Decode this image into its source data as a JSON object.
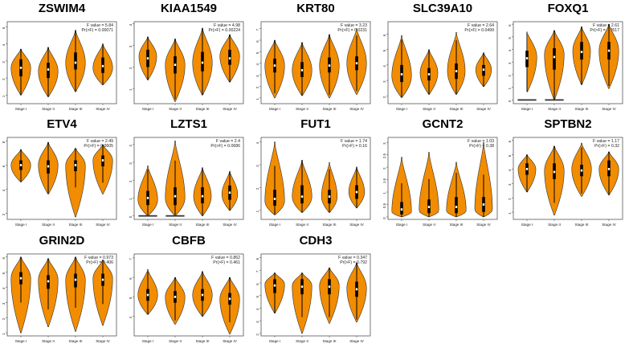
{
  "colors": {
    "violin_fill": "#F28C00",
    "violin_stroke": "#333333",
    "box": "#000000",
    "median": "#ffffff",
    "frame": "#555555"
  },
  "chart_data": [
    {
      "type": "violin",
      "gene": "ZSWIM4",
      "f_value": "F value = 5.84",
      "pr_value": "Pr(>F) = 0.00071",
      "categories": [
        "Stage I",
        "Stage II",
        "Stage III",
        "Stage IV"
      ],
      "ylim": [
        0.5,
        5.3
      ],
      "yticks": [
        1,
        2,
        3,
        4,
        5
      ],
      "zero_bars": false,
      "series": [
        {
          "median": 2.6,
          "q1": 2.1,
          "q3": 3.1,
          "min": 1.0,
          "max": 3.7,
          "mode": 2.6,
          "width": 1.0
        },
        {
          "median": 2.5,
          "q1": 2.0,
          "q3": 2.9,
          "min": 0.9,
          "max": 3.8,
          "mode": 2.4,
          "width": 1.0
        },
        {
          "median": 2.9,
          "q1": 2.5,
          "q3": 3.5,
          "min": 1.2,
          "max": 4.8,
          "mode": 2.9,
          "width": 1.0
        },
        {
          "median": 2.7,
          "q1": 2.3,
          "q3": 3.2,
          "min": 1.6,
          "max": 4.0,
          "mode": 2.6,
          "width": 1.0
        }
      ]
    },
    {
      "type": "violin",
      "gene": "KIAA1549",
      "f_value": "F value = 4.98",
      "pr_value": "Pr(>F) = 0.00224",
      "categories": [
        "Stage I",
        "Stage II",
        "Stage III",
        "Stage IV"
      ],
      "ylim": [
        0.3,
        4.1
      ],
      "yticks": [
        1,
        2,
        3,
        4
      ],
      "zero_bars": false,
      "series": [
        {
          "median": 2.4,
          "q1": 2.0,
          "q3": 2.8,
          "min": 1.4,
          "max": 3.4,
          "mode": 2.5,
          "width": 0.9
        },
        {
          "median": 2.1,
          "q1": 1.7,
          "q3": 2.5,
          "min": 0.4,
          "max": 3.3,
          "mode": 2.1,
          "width": 1.0
        },
        {
          "median": 2.2,
          "q1": 1.8,
          "q3": 2.7,
          "min": 0.7,
          "max": 3.8,
          "mode": 2.2,
          "width": 1.0
        },
        {
          "median": 2.4,
          "q1": 2.1,
          "q3": 2.8,
          "min": 1.3,
          "max": 3.5,
          "mode": 2.5,
          "width": 1.0
        }
      ]
    },
    {
      "type": "violin",
      "gene": "KRT80",
      "f_value": "F value = 3.23",
      "pr_value": "Pr(>F) = 0.0231",
      "categories": [
        "Stage I",
        "Stage II",
        "Stage III",
        "Stage IV"
      ],
      "ylim": [
        0.5,
        7.6
      ],
      "yticks": [
        1,
        2,
        3,
        4,
        5,
        6,
        7
      ],
      "zero_bars": false,
      "series": [
        {
          "median": 3.8,
          "q1": 3.2,
          "q3": 4.4,
          "min": 1.0,
          "max": 6.0,
          "mode": 3.8,
          "width": 1.0
        },
        {
          "median": 3.4,
          "q1": 2.8,
          "q3": 4.1,
          "min": 1.2,
          "max": 5.8,
          "mode": 3.4,
          "width": 1.0
        },
        {
          "median": 3.8,
          "q1": 3.2,
          "q3": 4.5,
          "min": 1.0,
          "max": 6.5,
          "mode": 3.8,
          "width": 1.0
        },
        {
          "median": 4.0,
          "q1": 3.4,
          "q3": 4.6,
          "min": 1.3,
          "max": 7.0,
          "mode": 4.0,
          "width": 1.0
        }
      ]
    },
    {
      "type": "violin",
      "gene": "SLC39A10",
      "f_value": "F value = 2.64",
      "pr_value": "Pr(>F) = 0.0499",
      "categories": [
        "Stage I",
        "Stage II",
        "Stage III",
        "Stage IV"
      ],
      "ylim": [
        1.5,
        6.8
      ],
      "yticks": [
        2,
        3,
        4,
        5,
        6
      ],
      "zero_bars": false,
      "series": [
        {
          "median": 3.4,
          "q1": 2.9,
          "q3": 4.0,
          "min": 1.9,
          "max": 5.9,
          "mode": 3.3,
          "width": 1.0
        },
        {
          "median": 3.4,
          "q1": 3.0,
          "q3": 3.8,
          "min": 2.1,
          "max": 5.0,
          "mode": 3.5,
          "width": 0.9
        },
        {
          "median": 3.6,
          "q1": 3.1,
          "q3": 4.1,
          "min": 2.1,
          "max": 6.1,
          "mode": 3.6,
          "width": 0.9
        },
        {
          "median": 3.7,
          "q1": 3.3,
          "q3": 4.0,
          "min": 2.6,
          "max": 4.8,
          "mode": 3.7,
          "width": 0.8
        }
      ]
    },
    {
      "type": "violin",
      "gene": "FOXQ1",
      "f_value": "F value = 2.61",
      "pr_value": "Pr(>F) = 0.0517",
      "categories": [
        "Stage I",
        "Stage II",
        "Stage III",
        "Stage IV"
      ],
      "ylim": [
        -0.3,
        6.2
      ],
      "yticks": [
        0,
        1,
        2,
        3,
        4,
        5,
        6
      ],
      "zero_bars": true,
      "zero_bar_stages": [
        0,
        1
      ],
      "series": [
        {
          "median": 3.3,
          "q1": 2.6,
          "q3": 3.9,
          "min": 0.6,
          "max": 5.4,
          "mode": 3.4,
          "width": 1.0
        },
        {
          "median": 3.4,
          "q1": 2.4,
          "q3": 4.1,
          "min": 0.0,
          "max": 5.5,
          "mode": 3.6,
          "width": 1.0
        },
        {
          "median": 3.8,
          "q1": 3.2,
          "q3": 4.6,
          "min": 1.2,
          "max": 5.8,
          "mode": 3.9,
          "width": 0.9
        },
        {
          "median": 3.9,
          "q1": 3.2,
          "q3": 4.6,
          "min": 0.9,
          "max": 6.0,
          "mode": 3.9,
          "width": 1.0
        }
      ]
    },
    {
      "type": "violin",
      "gene": "ETV4",
      "f_value": "F value = 2.49",
      "pr_value": "Pr(>F) = 0.0605",
      "categories": [
        "Stage I",
        "Stage II",
        "Stage III",
        "Stage IV"
      ],
      "ylim": [
        1.5,
        8.3
      ],
      "yticks": [
        2,
        4,
        6,
        8
      ],
      "zero_bars": false,
      "series": [
        {
          "median": 6.0,
          "q1": 5.6,
          "q3": 6.4,
          "min": 4.6,
          "max": 7.3,
          "mode": 6.0,
          "width": 1.0
        },
        {
          "median": 5.9,
          "q1": 5.3,
          "q3": 6.4,
          "min": 3.6,
          "max": 7.9,
          "mode": 6.0,
          "width": 1.0
        },
        {
          "median": 6.0,
          "q1": 5.5,
          "q3": 6.4,
          "min": 1.7,
          "max": 7.4,
          "mode": 6.0,
          "width": 1.0
        },
        {
          "median": 6.4,
          "q1": 5.9,
          "q3": 6.8,
          "min": 3.6,
          "max": 7.7,
          "mode": 6.4,
          "width": 1.0
        }
      ]
    },
    {
      "type": "violin",
      "gene": "LZTS1",
      "f_value": "F value = 2.4",
      "pr_value": "Pr(>F) = 0.0686",
      "categories": [
        "Stage I",
        "Stage II",
        "Stage III",
        "Stage IV"
      ],
      "ylim": [
        -0.2,
        4.4
      ],
      "yticks": [
        0,
        1,
        2,
        3,
        4
      ],
      "zero_bars": true,
      "zero_bar_stages": [
        0,
        1
      ],
      "series": [
        {
          "median": 1.0,
          "q1": 0.6,
          "q3": 1.4,
          "min": 0.0,
          "max": 2.8,
          "mode": 0.9,
          "width": 1.0
        },
        {
          "median": 1.1,
          "q1": 0.6,
          "q3": 1.6,
          "min": 0.0,
          "max": 4.2,
          "mode": 1.0,
          "width": 1.0
        },
        {
          "median": 1.1,
          "q1": 0.7,
          "q3": 1.6,
          "min": 0.0,
          "max": 2.7,
          "mode": 1.1,
          "width": 0.9
        },
        {
          "median": 1.3,
          "q1": 0.9,
          "q3": 1.7,
          "min": 0.3,
          "max": 2.5,
          "mode": 1.2,
          "width": 0.8
        }
      ]
    },
    {
      "type": "violin",
      "gene": "FUT1",
      "f_value": "F value = 1.74",
      "pr_value": "Pr(>F) = 0.16",
      "categories": [
        "Stage I",
        "Stage II",
        "Stage III",
        "Stage IV"
      ],
      "ylim": [
        0.6,
        4.2
      ],
      "yticks": [
        1,
        2,
        3,
        4
      ],
      "zero_bars": false,
      "series": [
        {
          "median": 1.5,
          "q1": 1.2,
          "q3": 1.9,
          "min": 0.8,
          "max": 4.0,
          "mode": 1.4,
          "width": 1.0
        },
        {
          "median": 1.6,
          "q1": 1.3,
          "q3": 2.1,
          "min": 0.9,
          "max": 3.2,
          "mode": 1.6,
          "width": 1.0
        },
        {
          "median": 1.6,
          "q1": 1.3,
          "q3": 1.9,
          "min": 0.9,
          "max": 3.1,
          "mode": 1.6,
          "width": 0.8
        },
        {
          "median": 1.8,
          "q1": 1.5,
          "q3": 2.1,
          "min": 1.1,
          "max": 2.9,
          "mode": 1.8,
          "width": 0.8
        }
      ]
    },
    {
      "type": "violin",
      "gene": "GCNT2",
      "f_value": "F value = 1.03",
      "pr_value": "Pr(>F) = 0.38",
      "categories": [
        "Stage I",
        "Stage II",
        "Stage III",
        "Stage IV"
      ],
      "ylim": [
        -0.1,
        3.2
      ],
      "yticks": [
        0.0,
        0.5,
        1.0,
        1.5,
        2.0,
        2.5,
        3.0
      ],
      "zero_bars": false,
      "series": [
        {
          "median": 0.3,
          "q1": 0.1,
          "q3": 0.6,
          "min": 0.0,
          "max": 2.4,
          "mode": 0.2,
          "width": 1.0
        },
        {
          "median": 0.4,
          "q1": 0.15,
          "q3": 0.7,
          "min": 0.0,
          "max": 2.6,
          "mode": 0.25,
          "width": 1.0
        },
        {
          "median": 0.4,
          "q1": 0.15,
          "q3": 0.8,
          "min": 0.0,
          "max": 2.2,
          "mode": 0.25,
          "width": 1.0
        },
        {
          "median": 0.5,
          "q1": 0.2,
          "q3": 0.8,
          "min": 0.0,
          "max": 3.0,
          "mode": 0.3,
          "width": 0.9
        }
      ]
    },
    {
      "type": "violin",
      "gene": "SPTBN2",
      "f_value": "F value = 1.17",
      "pr_value": "Pr(>F) = 0.32",
      "categories": [
        "Stage I",
        "Stage II",
        "Stage III",
        "Stage IV"
      ],
      "ylim": [
        0.5,
        6.2
      ],
      "yticks": [
        1,
        2,
        3,
        4,
        5,
        6
      ],
      "zero_bars": false,
      "series": [
        {
          "median": 4.0,
          "q1": 3.6,
          "q3": 4.4,
          "min": 2.4,
          "max": 5.0,
          "mode": 4.0,
          "width": 0.9
        },
        {
          "median": 3.8,
          "q1": 3.3,
          "q3": 4.4,
          "min": 0.8,
          "max": 5.6,
          "mode": 3.9,
          "width": 1.0
        },
        {
          "median": 3.9,
          "q1": 3.5,
          "q3": 4.3,
          "min": 2.1,
          "max": 5.8,
          "mode": 4.0,
          "width": 1.0
        },
        {
          "median": 4.0,
          "q1": 3.5,
          "q3": 4.6,
          "min": 2.2,
          "max": 5.2,
          "mode": 4.0,
          "width": 1.0
        }
      ]
    },
    {
      "type": "violin",
      "gene": "GRIN2D",
      "f_value": "F value = 0.973",
      "pr_value": "Pr(>F) = 0.406",
      "categories": [
        "Stage I",
        "Stage II",
        "Stage III",
        "Stage IV"
      ],
      "ylim": [
        0.8,
        6.2
      ],
      "yticks": [
        1,
        2,
        3,
        4,
        5,
        6
      ],
      "zero_bars": false,
      "series": [
        {
          "median": 4.6,
          "q1": 4.2,
          "q3": 5.0,
          "min": 1.0,
          "max": 6.0,
          "mode": 4.6,
          "width": 1.0
        },
        {
          "median": 4.4,
          "q1": 3.9,
          "q3": 4.8,
          "min": 1.4,
          "max": 5.9,
          "mode": 4.5,
          "width": 1.0
        },
        {
          "median": 4.5,
          "q1": 4.0,
          "q3": 4.9,
          "min": 1.1,
          "max": 6.0,
          "mode": 4.5,
          "width": 1.0
        },
        {
          "median": 4.5,
          "q1": 4.1,
          "q3": 4.9,
          "min": 1.5,
          "max": 5.8,
          "mode": 4.6,
          "width": 1.0
        }
      ]
    },
    {
      "type": "violin",
      "gene": "CBFB",
      "f_value": "F value = 0.862",
      "pr_value": "Pr(>F) = 0.461",
      "categories": [
        "Stage I",
        "Stage II",
        "Stage III",
        "Stage IV"
      ],
      "ylim": [
        3.0,
        7.2
      ],
      "yticks": [
        4,
        5,
        6,
        7
      ],
      "zero_bars": false,
      "series": [
        {
          "median": 5.1,
          "q1": 4.8,
          "q3": 5.4,
          "min": 4.1,
          "max": 6.4,
          "mode": 5.1,
          "width": 1.0
        },
        {
          "median": 5.0,
          "q1": 4.7,
          "q3": 5.3,
          "min": 3.6,
          "max": 6.0,
          "mode": 5.0,
          "width": 1.0
        },
        {
          "median": 5.1,
          "q1": 4.8,
          "q3": 5.4,
          "min": 4.0,
          "max": 6.3,
          "mode": 5.1,
          "width": 1.0
        },
        {
          "median": 4.9,
          "q1": 4.6,
          "q3": 5.2,
          "min": 3.1,
          "max": 6.0,
          "mode": 4.9,
          "width": 1.0
        }
      ]
    },
    {
      "type": "violin",
      "gene": "CDH3",
      "f_value": "F value = 0.347",
      "pr_value": "Pr(>F) = 0.792",
      "categories": [
        "Stage I",
        "Stage II",
        "Stage III",
        "Stage IV"
      ],
      "ylim": [
        1.8,
        8.3
      ],
      "yticks": [
        2,
        3,
        4,
        5,
        6,
        7,
        8
      ],
      "zero_bars": false,
      "series": [
        {
          "median": 5.8,
          "q1": 5.2,
          "q3": 6.3,
          "min": 3.6,
          "max": 6.8,
          "mode": 5.9,
          "width": 1.0
        },
        {
          "median": 5.7,
          "q1": 5.1,
          "q3": 6.3,
          "min": 2.0,
          "max": 6.8,
          "mode": 5.8,
          "width": 1.0
        },
        {
          "median": 5.7,
          "q1": 5.1,
          "q3": 6.3,
          "min": 2.8,
          "max": 7.2,
          "mode": 5.8,
          "width": 1.0
        },
        {
          "median": 5.5,
          "q1": 4.9,
          "q3": 6.1,
          "min": 2.9,
          "max": 7.6,
          "mode": 5.6,
          "width": 1.0
        }
      ]
    }
  ]
}
